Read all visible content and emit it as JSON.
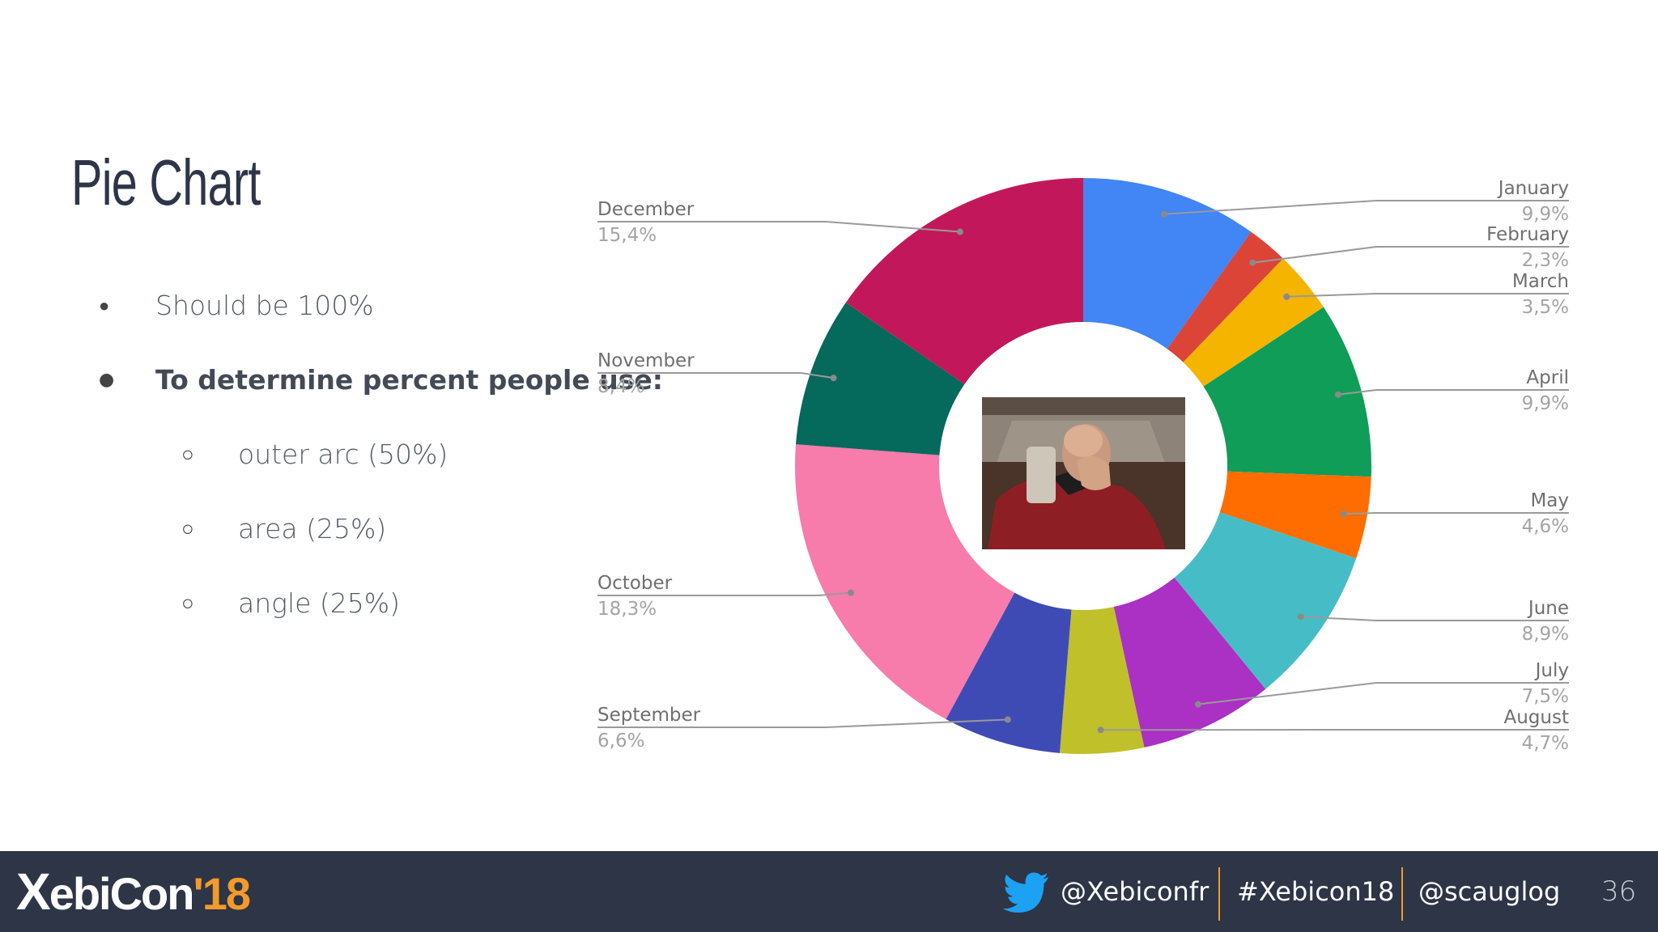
{
  "slide": {
    "title": "Pie Chart",
    "bullets": [
      {
        "text": "Should be 100%",
        "level": 1,
        "bold": false,
        "marker": "●"
      },
      {
        "text": "To determine percent people use:",
        "level": 1,
        "bold": true,
        "marker": "●"
      },
      {
        "text": "outer arc (50%)",
        "level": 2,
        "bold": false,
        "marker": "○"
      },
      {
        "text": "area (25%)",
        "level": 2,
        "bold": false,
        "marker": "○"
      },
      {
        "text": "angle (25%)",
        "level": 2,
        "bold": false,
        "marker": "○"
      }
    ]
  },
  "chart_data": {
    "type": "pie",
    "variant": "donut",
    "center_image": "facepalm-photo",
    "slices": [
      {
        "label": "January",
        "value": 9.9,
        "display": "9,9%",
        "color": "#4285f4"
      },
      {
        "label": "February",
        "value": 2.3,
        "display": "2,3%",
        "color": "#db4437"
      },
      {
        "label": "March",
        "value": 3.5,
        "display": "3,5%",
        "color": "#f4b400"
      },
      {
        "label": "April",
        "value": 9.9,
        "display": "9,9%",
        "color": "#0f9d58"
      },
      {
        "label": "May",
        "value": 4.6,
        "display": "4,6%",
        "color": "#ff6d00"
      },
      {
        "label": "June",
        "value": 8.9,
        "display": "8,9%",
        "color": "#46bdc6"
      },
      {
        "label": "July",
        "value": 7.5,
        "display": "7,5%",
        "color": "#ab30c4"
      },
      {
        "label": "August",
        "value": 4.7,
        "display": "4,7%",
        "color": "#c0c02a"
      },
      {
        "label": "September",
        "value": 6.6,
        "display": "6,6%",
        "color": "#3f4bb5"
      },
      {
        "label": "October",
        "value": 18.3,
        "display": "18,3%",
        "color": "#f77bab"
      },
      {
        "label": "November",
        "value": 8.4,
        "display": "8,4%",
        "color": "#05695c"
      },
      {
        "label": "December",
        "value": 15.4,
        "display": "15,4%",
        "color": "#c2185b"
      }
    ]
  },
  "footer": {
    "logo_x": "X",
    "logo_text": "ebiCon",
    "logo_year": "'18",
    "twitter_handle": "@Xebiconfr",
    "hashtag": "#Xebicon18",
    "speaker_handle": "@scauglog",
    "page_number": "36",
    "accent_color": "#f39a2b",
    "background_color": "#2d3546"
  }
}
